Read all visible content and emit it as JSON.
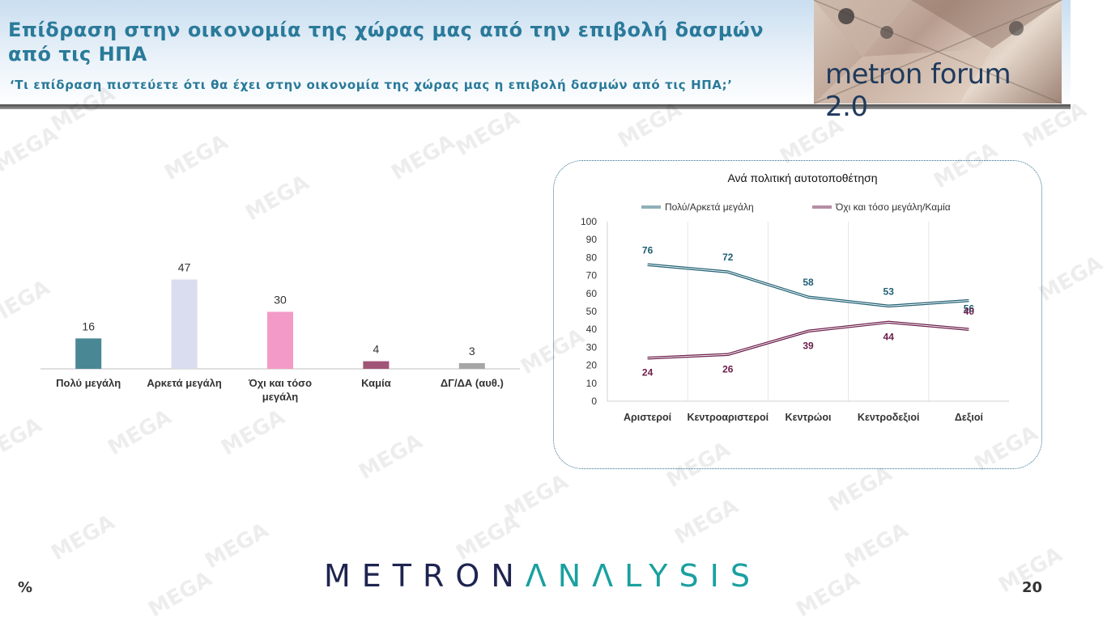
{
  "header": {
    "title": "Επίδραση στην οικονομία της χώρας μας από την  επιβολή δασμών από τις ΗΠΑ",
    "subtitle": "‘Τι επίδραση πιστεύετε ότι θα έχει στην οικονομία της χώρας μας η επιβολή δασμών από τις ΗΠΑ;’",
    "logo_text": "metron forum 2.0"
  },
  "watermark": "MEGA",
  "footer": {
    "brand_left": "METRON",
    "brand_right": "ΛNΛLYSIS",
    "percent_sign": "%",
    "page_number": "20"
  },
  "chart_data": [
    {
      "type": "bar",
      "categories": [
        "Πολύ μεγάλη",
        "Αρκετά μεγάλη",
        "Όχι και τόσο μεγάλη",
        "Καμία",
        "ΔΓ/ΔΑ (αυθ.)"
      ],
      "values": [
        16,
        47,
        30,
        4,
        3
      ],
      "colors": [
        "#4a8795",
        "#d9ddef",
        "#f39ac8",
        "#a05577",
        "#a6a6a6"
      ],
      "ylim": [
        0,
        50
      ]
    },
    {
      "type": "line",
      "title": "Ανά πολιτική αυτοτοποθέτηση",
      "categories": [
        "Αριστεροί",
        "Κεντροαριστεροί",
        "Κεντρώοι",
        "Κεντροδεξιοί",
        "Δεξιοί"
      ],
      "series": [
        {
          "name": "Πολύ/Αρκετά μεγάλη",
          "values": [
            76,
            72,
            58,
            53,
            56
          ],
          "color": "#1f5f73"
        },
        {
          "name": "Όχι και τόσο μεγάλη/Καμία",
          "values": [
            24,
            26,
            39,
            44,
            40
          ],
          "color": "#6b1d4a"
        }
      ],
      "yticks": [
        0,
        10,
        20,
        30,
        40,
        50,
        60,
        70,
        80,
        90,
        100
      ],
      "ylim": [
        0,
        100
      ],
      "legend": "top"
    }
  ]
}
